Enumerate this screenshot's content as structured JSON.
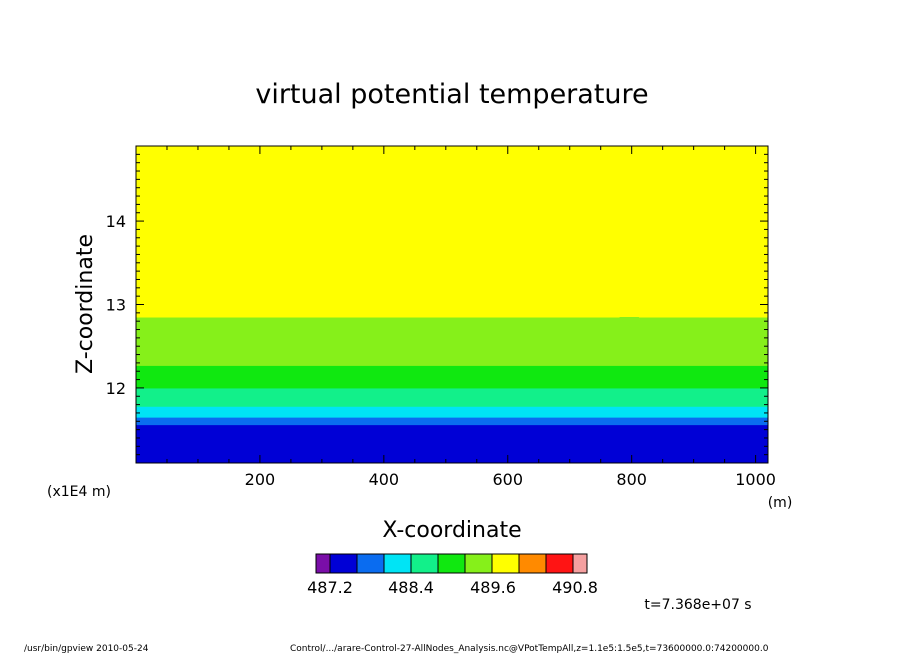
{
  "chart_data": {
    "type": "heatmap",
    "title": "virtual potential temperature",
    "xlabel": "X-coordinate",
    "ylabel": "Z-coordinate",
    "x_unit": "(m)",
    "y_unit": "(x1E4 m)",
    "xlim": [
      0,
      1020
    ],
    "ylim": [
      11.1,
      14.9
    ],
    "x_ticks": [
      200,
      400,
      600,
      800,
      1000
    ],
    "y_ticks": [
      12,
      13,
      14
    ],
    "colorbar": {
      "colors": [
        "#7a0ea8",
        "#0000d6",
        "#0a6cf0",
        "#00e4f5",
        "#12f08a",
        "#10e810",
        "#86f01a",
        "#ffff00",
        "#ff8a00",
        "#ff1414",
        "#f5a0a0"
      ],
      "tick_labels": [
        "487.2",
        "488.4",
        "489.6",
        "490.8"
      ]
    },
    "bands": [
      {
        "color": "#0000d6",
        "z_bottom": 11.1,
        "z_top": 11.56
      },
      {
        "color": "#0a6cf0",
        "z_bottom": 11.56,
        "z_top": 11.65
      },
      {
        "color": "#00e4f5",
        "z_bottom": 11.65,
        "z_top": 11.78
      },
      {
        "color": "#12f08a",
        "z_bottom": 11.78,
        "z_top": 12.0
      },
      {
        "color": "#10e810",
        "z_bottom": 12.0,
        "z_top": 12.27
      },
      {
        "color": "#86f01a",
        "z_bottom": 12.27,
        "z_top": 12.85
      },
      {
        "color": "#ffff00",
        "z_bottom": 12.85,
        "z_top": 14.9
      }
    ],
    "time_label": "t=7.368e+07 s"
  },
  "footer": {
    "left": "/usr/bin/gpview  2010-05-24",
    "right": "Control/.../arare-Control-27-AllNodes_Analysis.nc@VPotTempAll,z=1.1e5:1.5e5,t=73600000.0:74200000.0"
  }
}
